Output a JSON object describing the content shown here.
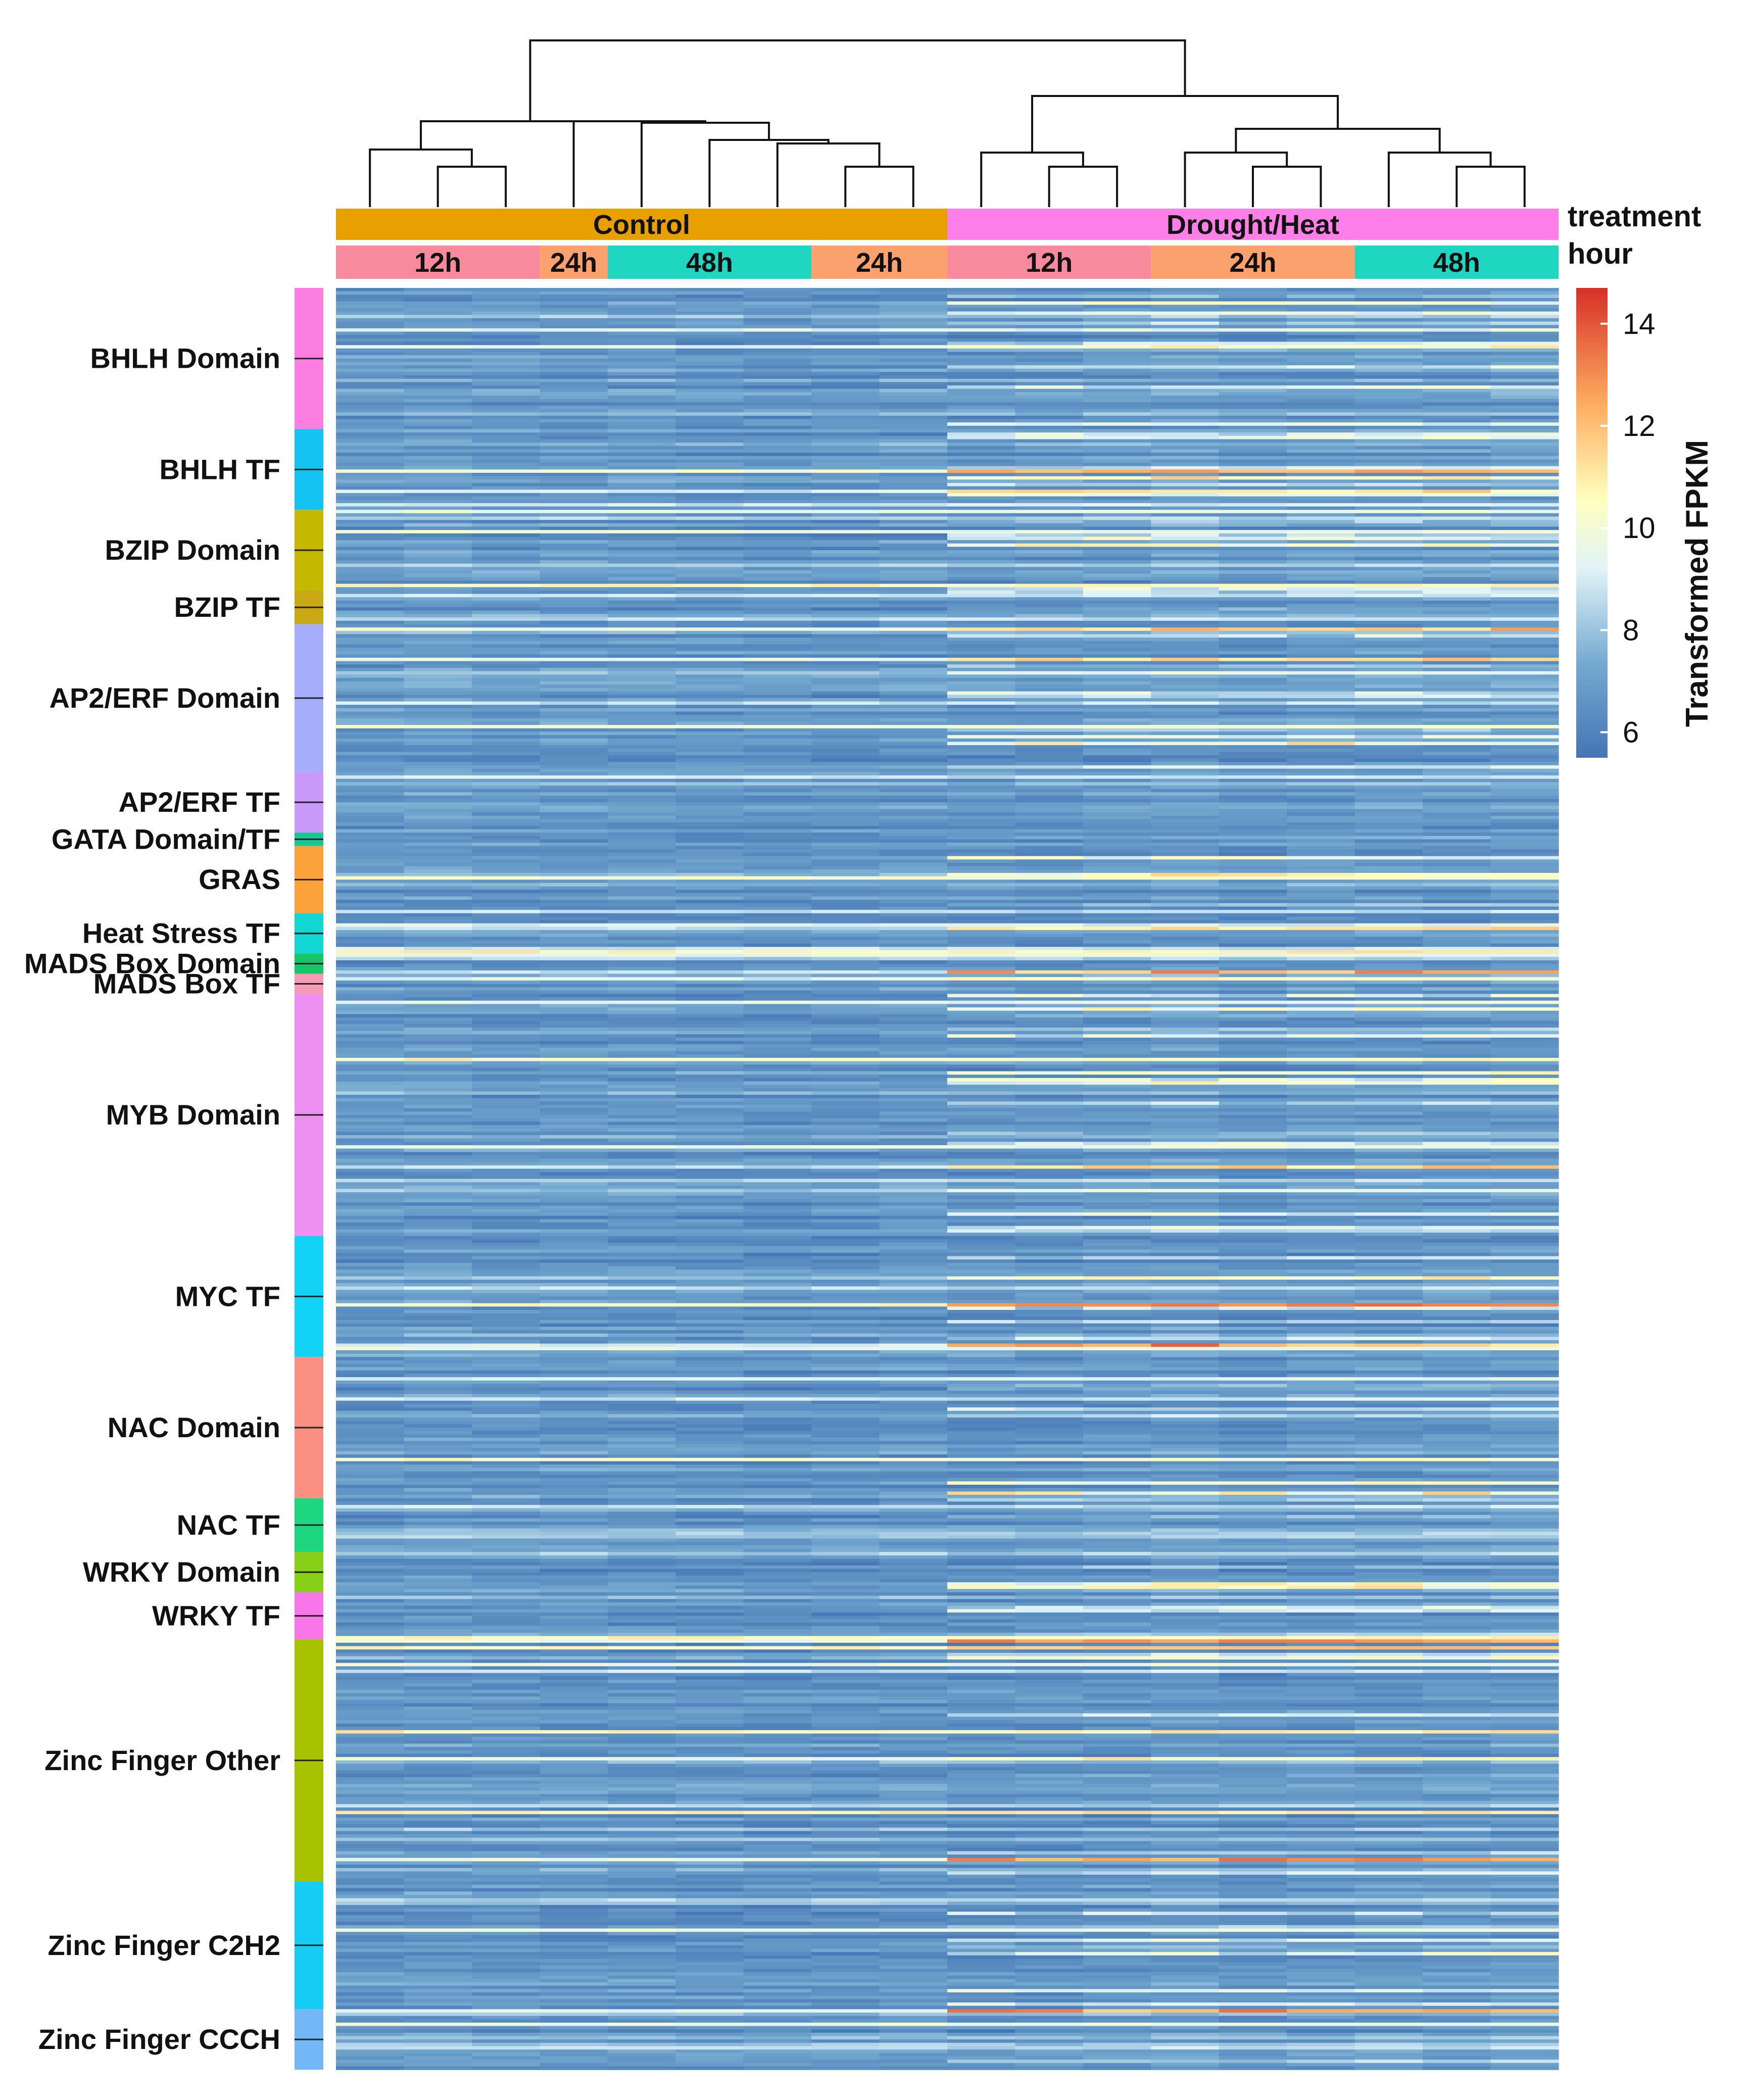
{
  "chart_data": {
    "type": "heatmap",
    "title": "",
    "colorbar": {
      "label": "Transformed FPKM",
      "ticks": [
        6,
        8,
        10,
        12,
        14
      ],
      "range": [
        5.5,
        14.7
      ],
      "colors": [
        "#4575b4",
        "#74a9cf",
        "#e0f3f8",
        "#ffffbf",
        "#fdae61",
        "#d73027"
      ]
    },
    "annotation_rows": [
      {
        "name": "treatment",
        "groups": [
          {
            "label": "Control",
            "span": 9,
            "color": "#e8a000"
          },
          {
            "label": "Drought/Heat",
            "span": 9,
            "color": "#ff7fe8"
          }
        ]
      },
      {
        "name": "hour",
        "groups": [
          {
            "label": "12h",
            "span": 3,
            "color": "#f78a9d"
          },
          {
            "label": "24h",
            "span": 1,
            "color": "#fba16d"
          },
          {
            "label": "48h",
            "span": 3,
            "color": "#1fd6c0"
          },
          {
            "label": "24h",
            "span": 2,
            "color": "#fba16d"
          },
          {
            "label": "12h",
            "span": 3,
            "color": "#f78a9d"
          },
          {
            "label": "24h",
            "span": 3,
            "color": "#fba16d"
          },
          {
            "label": "48h",
            "span": 3,
            "color": "#1fd6c0"
          }
        ]
      }
    ],
    "n_columns": 18,
    "gene_families": [
      {
        "label": "BHLH Domain",
        "rows": 42,
        "color": "#fc7ee0"
      },
      {
        "label": "BHLH TF",
        "rows": 24,
        "color": "#15c3f3"
      },
      {
        "label": "BZIP Domain",
        "rows": 24,
        "color": "#c4b800"
      },
      {
        "label": "BZIP TF",
        "rows": 10,
        "color": "#c9a915"
      },
      {
        "label": "AP2/ERF Domain",
        "rows": 44,
        "color": "#a5aefc"
      },
      {
        "label": "AP2/ERF TF",
        "rows": 18,
        "color": "#c99afc"
      },
      {
        "label": "GATA Domain/TF",
        "rows": 4,
        "color": "#19c796"
      },
      {
        "label": "GRAS",
        "rows": 20,
        "color": "#fca23a"
      },
      {
        "label": "Heat Stress TF",
        "rows": 12,
        "color": "#12d6d2"
      },
      {
        "label": "MADS Box Domain",
        "rows": 6,
        "color": "#18c468"
      },
      {
        "label": "MADS Box TF",
        "rows": 6,
        "color": "#f79ab8"
      },
      {
        "label": "MYB Domain",
        "rows": 72,
        "color": "#ee8ff2"
      },
      {
        "label": "MYC TF",
        "rows": 36,
        "color": "#12d3f6"
      },
      {
        "label": "NAC Domain",
        "rows": 42,
        "color": "#fb8f82"
      },
      {
        "label": "NAC TF",
        "rows": 16,
        "color": "#1fd680"
      },
      {
        "label": "WRKY Domain",
        "rows": 12,
        "color": "#88cf1a"
      },
      {
        "label": "WRKY TF",
        "rows": 14,
        "color": "#f975ea"
      },
      {
        "label": "Zinc Finger Other",
        "rows": 72,
        "color": "#a7c300"
      },
      {
        "label": "Zinc Finger C2H2",
        "rows": 38,
        "color": "#15ccf5"
      },
      {
        "label": "Zinc Finger CCCH",
        "rows": 18,
        "color": "#72b8f6"
      }
    ],
    "xlabel": "",
    "ylabel": ""
  }
}
